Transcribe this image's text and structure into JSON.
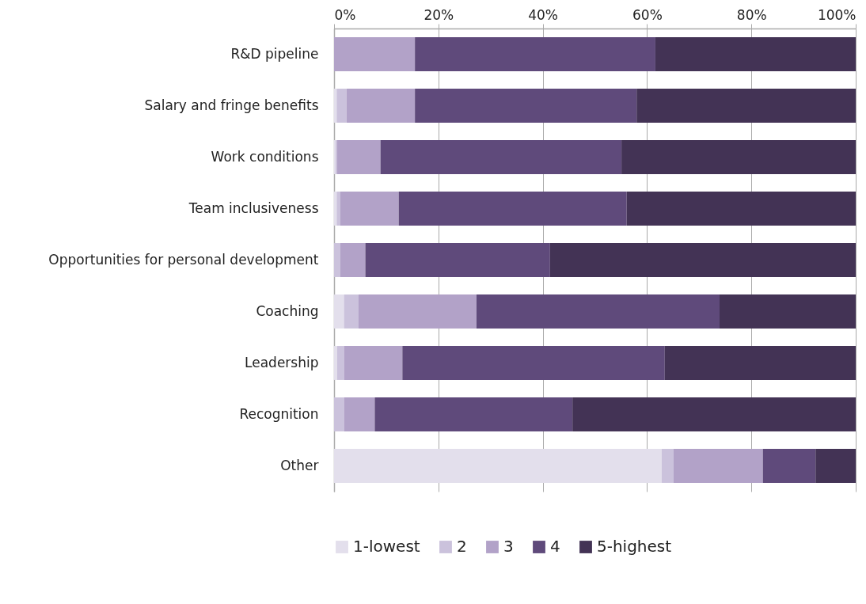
{
  "chart_data": {
    "type": "bar",
    "orientation": "horizontal",
    "stacked": true,
    "categories": [
      "R&D pipeline",
      "Salary and fringe benefits",
      "Work conditions",
      "Team inclusiveness",
      "Opportunities for personal development",
      "Coaching",
      "Leadership",
      "Recognition",
      "Other"
    ],
    "series": [
      {
        "name": "1-lowest",
        "color": "#e3dfec",
        "values": [
          0,
          0.5,
          0.3,
          0.5,
          0,
          1.9,
          0.6,
          0,
          62.8
        ]
      },
      {
        "name": "2",
        "color": "#cbc2dc",
        "values": [
          0,
          1.9,
          0.3,
          0.7,
          1.2,
          2.8,
          1.3,
          1.9,
          2.3
        ]
      },
      {
        "name": "3",
        "color": "#b2a2c8",
        "values": [
          15.5,
          13.1,
          8.3,
          11.2,
          4.8,
          22.6,
          11.2,
          5.9,
          17.1
        ]
      },
      {
        "name": "4",
        "color": "#5f4a7b",
        "values": [
          46.1,
          42.5,
          46.2,
          43.7,
          35.4,
          46.6,
          50.3,
          37.9,
          10.1
        ]
      },
      {
        "name": "5-highest",
        "color": "#433355",
        "values": [
          38.4,
          42.0,
          44.9,
          43.9,
          58.6,
          26.1,
          36.6,
          54.3,
          7.7
        ]
      }
    ],
    "xlim": [
      0,
      100
    ],
    "xticks": [
      {
        "value": 0,
        "label": "0%"
      },
      {
        "value": 20,
        "label": "20%"
      },
      {
        "value": 40,
        "label": "40%"
      },
      {
        "value": 60,
        "label": "60%"
      },
      {
        "value": 80,
        "label": "80%"
      },
      {
        "value": 100,
        "label": "100%"
      }
    ],
    "grid": "x",
    "legend": "bottom"
  }
}
